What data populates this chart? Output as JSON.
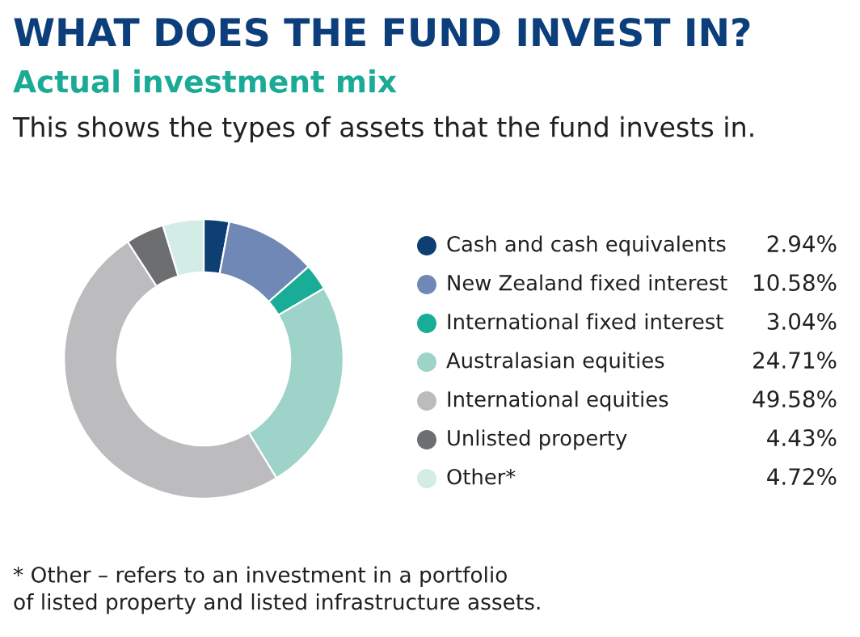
{
  "chart_data": {
    "type": "donut",
    "title": "WHAT DOES THE FUND INVEST IN?",
    "subtitle": "Actual investment mix",
    "annotations": [
      "This shows the types of assets that the fund invests in.",
      "* Other – refers to an investment in a portfolio\nof listed property and listed infrastructure assets."
    ],
    "categories": [
      "Cash and cash equivalents",
      "New Zealand fixed interest",
      "International fixed interest",
      "Australasian equities",
      "International equities",
      "Unlisted property",
      "Other*"
    ],
    "values": [
      2.94,
      10.58,
      3.04,
      24.71,
      49.58,
      4.43,
      4.72
    ],
    "value_labels": [
      "2.94%",
      "10.58%",
      "3.04%",
      "24.71%",
      "49.58%",
      "4.43%",
      "4.72%"
    ],
    "colors": [
      "#0d3f73",
      "#7088b5",
      "#19ad98",
      "#9dd3c8",
      "#bcbcbf",
      "#6d6e70",
      "#d3ece6"
    ],
    "legend": "right"
  }
}
